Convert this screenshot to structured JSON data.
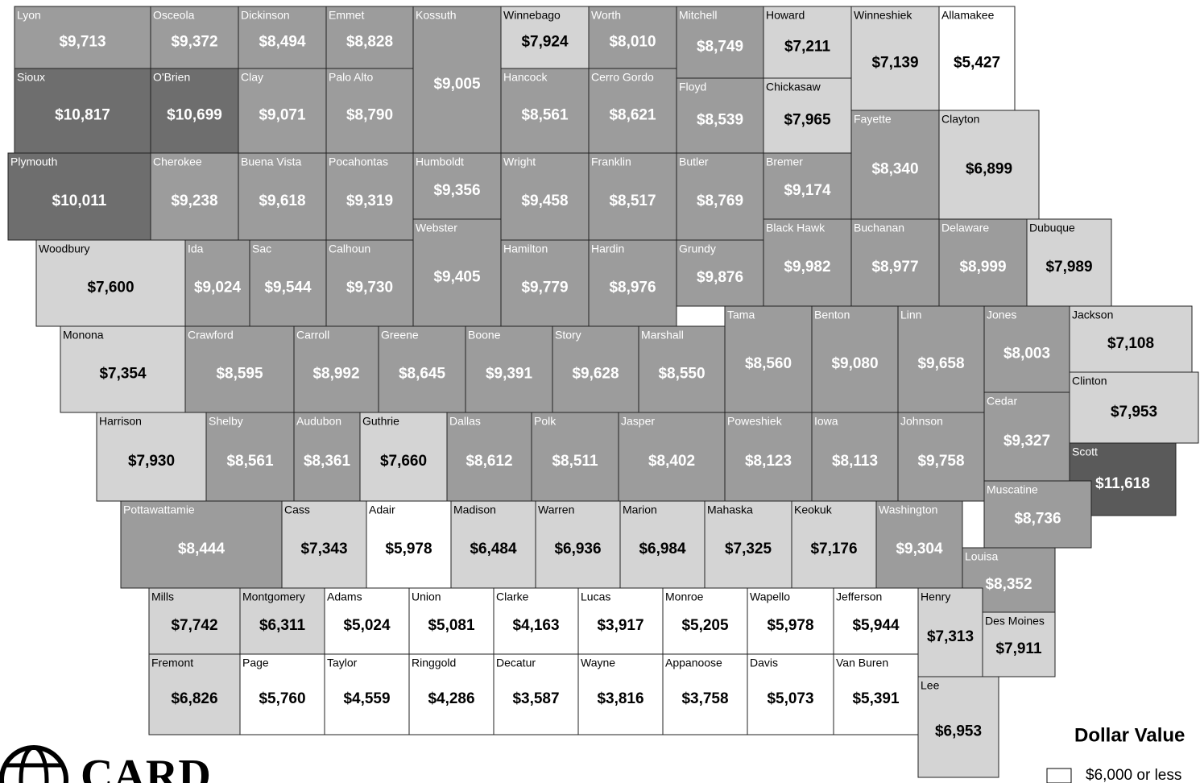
{
  "counties": [
    {
      "name": "Lyon",
      "value": "$9,713",
      "fill": "#9c9c9c"
    },
    {
      "name": "Osceola",
      "value": "$9,372",
      "fill": "#9c9c9c"
    },
    {
      "name": "Dickinson",
      "value": "$8,494",
      "fill": "#9c9c9c"
    },
    {
      "name": "Emmet",
      "value": "$8,828",
      "fill": "#9c9c9c"
    },
    {
      "name": "Kossuth",
      "value": "$9,005",
      "fill": "#9c9c9c"
    },
    {
      "name": "Winnebago",
      "value": "$7,924",
      "fill": "#d4d4d4"
    },
    {
      "name": "Worth",
      "value": "$8,010",
      "fill": "#9c9c9c"
    },
    {
      "name": "Mitchell",
      "value": "$8,749",
      "fill": "#9c9c9c"
    },
    {
      "name": "Howard",
      "value": "$7,211",
      "fill": "#d4d4d4"
    },
    {
      "name": "Winneshiek",
      "value": "$7,139",
      "fill": "#d4d4d4"
    },
    {
      "name": "Allamakee",
      "value": "$5,427",
      "fill": "#ffffff"
    },
    {
      "name": "Sioux",
      "value": "$10,817",
      "fill": "#6e6e6e"
    },
    {
      "name": "O'Brien",
      "value": "$10,699",
      "fill": "#6e6e6e"
    },
    {
      "name": "Clay",
      "value": "$9,071",
      "fill": "#9c9c9c"
    },
    {
      "name": "Palo Alto",
      "value": "$8,790",
      "fill": "#9c9c9c"
    },
    {
      "name": "Hancock",
      "value": "$8,561",
      "fill": "#9c9c9c"
    },
    {
      "name": "Cerro Gordo",
      "value": "$8,621",
      "fill": "#9c9c9c"
    },
    {
      "name": "Floyd",
      "value": "$8,539",
      "fill": "#9c9c9c"
    },
    {
      "name": "Chickasaw",
      "value": "$7,965",
      "fill": "#d4d4d4"
    },
    {
      "name": "Fayette",
      "value": "$8,340",
      "fill": "#9c9c9c"
    },
    {
      "name": "Clayton",
      "value": "$6,899",
      "fill": "#d4d4d4"
    },
    {
      "name": "Plymouth",
      "value": "$10,011",
      "fill": "#6e6e6e"
    },
    {
      "name": "Cherokee",
      "value": "$9,238",
      "fill": "#9c9c9c"
    },
    {
      "name": "Buena Vista",
      "value": "$9,618",
      "fill": "#9c9c9c"
    },
    {
      "name": "Pocahontas",
      "value": "$9,319",
      "fill": "#9c9c9c"
    },
    {
      "name": "Humboldt",
      "value": "$9,356",
      "fill": "#9c9c9c"
    },
    {
      "name": "Wright",
      "value": "$9,458",
      "fill": "#9c9c9c"
    },
    {
      "name": "Franklin",
      "value": "$8,517",
      "fill": "#9c9c9c"
    },
    {
      "name": "Butler",
      "value": "$8,769",
      "fill": "#9c9c9c"
    },
    {
      "name": "Bremer",
      "value": "$9,174",
      "fill": "#9c9c9c"
    },
    {
      "name": "Woodbury",
      "value": "$7,600",
      "fill": "#d4d4d4"
    },
    {
      "name": "Ida",
      "value": "$9,024",
      "fill": "#9c9c9c"
    },
    {
      "name": "Sac",
      "value": "$9,544",
      "fill": "#9c9c9c"
    },
    {
      "name": "Calhoun",
      "value": "$9,730",
      "fill": "#9c9c9c"
    },
    {
      "name": "Webster",
      "value": "$9,405",
      "fill": "#9c9c9c"
    },
    {
      "name": "Hamilton",
      "value": "$9,779",
      "fill": "#9c9c9c"
    },
    {
      "name": "Hardin",
      "value": "$8,976",
      "fill": "#9c9c9c"
    },
    {
      "name": "Grundy",
      "value": "$9,876",
      "fill": "#9c9c9c"
    },
    {
      "name": "Black Hawk",
      "value": "$9,982",
      "fill": "#9c9c9c"
    },
    {
      "name": "Buchanan",
      "value": "$8,977",
      "fill": "#9c9c9c"
    },
    {
      "name": "Delaware",
      "value": "$8,999",
      "fill": "#9c9c9c"
    },
    {
      "name": "Dubuque",
      "value": "$7,989",
      "fill": "#d4d4d4"
    },
    {
      "name": "Monona",
      "value": "$7,354",
      "fill": "#d4d4d4"
    },
    {
      "name": "Crawford",
      "value": "$8,595",
      "fill": "#9c9c9c"
    },
    {
      "name": "Carroll",
      "value": "$8,992",
      "fill": "#9c9c9c"
    },
    {
      "name": "Greene",
      "value": "$8,645",
      "fill": "#9c9c9c"
    },
    {
      "name": "Boone",
      "value": "$9,391",
      "fill": "#9c9c9c"
    },
    {
      "name": "Story",
      "value": "$9,628",
      "fill": "#9c9c9c"
    },
    {
      "name": "Marshall",
      "value": "$8,550",
      "fill": "#9c9c9c"
    },
    {
      "name": "Tama",
      "value": "$8,560",
      "fill": "#9c9c9c"
    },
    {
      "name": "Benton",
      "value": "$9,080",
      "fill": "#9c9c9c"
    },
    {
      "name": "Linn",
      "value": "$9,658",
      "fill": "#9c9c9c"
    },
    {
      "name": "Jones",
      "value": "$8,003",
      "fill": "#9c9c9c"
    },
    {
      "name": "Jackson",
      "value": "$7,108",
      "fill": "#d4d4d4"
    },
    {
      "name": "Clinton",
      "value": "$7,953",
      "fill": "#d4d4d4"
    },
    {
      "name": "Harrison",
      "value": "$7,930",
      "fill": "#d4d4d4"
    },
    {
      "name": "Shelby",
      "value": "$8,561",
      "fill": "#9c9c9c"
    },
    {
      "name": "Audubon",
      "value": "$8,361",
      "fill": "#9c9c9c"
    },
    {
      "name": "Guthrie",
      "value": "$7,660",
      "fill": "#d4d4d4"
    },
    {
      "name": "Dallas",
      "value": "$8,612",
      "fill": "#9c9c9c"
    },
    {
      "name": "Polk",
      "value": "$8,511",
      "fill": "#9c9c9c"
    },
    {
      "name": "Jasper",
      "value": "$8,402",
      "fill": "#9c9c9c"
    },
    {
      "name": "Poweshiek",
      "value": "$8,123",
      "fill": "#9c9c9c"
    },
    {
      "name": "Iowa",
      "value": "$8,113",
      "fill": "#9c9c9c"
    },
    {
      "name": "Johnson",
      "value": "$9,758",
      "fill": "#9c9c9c"
    },
    {
      "name": "Cedar",
      "value": "$9,327",
      "fill": "#9c9c9c"
    },
    {
      "name": "Scott",
      "value": "$11,618",
      "fill": "#5a5a5a"
    },
    {
      "name": "Muscatine",
      "value": "$8,736",
      "fill": "#9c9c9c"
    },
    {
      "name": "Pottawattamie",
      "value": "$8,444",
      "fill": "#9c9c9c"
    },
    {
      "name": "Cass",
      "value": "$7,343",
      "fill": "#d4d4d4"
    },
    {
      "name": "Adair",
      "value": "$5,978",
      "fill": "#ffffff"
    },
    {
      "name": "Madison",
      "value": "$6,484",
      "fill": "#d4d4d4"
    },
    {
      "name": "Warren",
      "value": "$6,936",
      "fill": "#d4d4d4"
    },
    {
      "name": "Marion",
      "value": "$6,984",
      "fill": "#d4d4d4"
    },
    {
      "name": "Mahaska",
      "value": "$7,325",
      "fill": "#d4d4d4"
    },
    {
      "name": "Keokuk",
      "value": "$7,176",
      "fill": "#d4d4d4"
    },
    {
      "name": "Washington",
      "value": "$9,304",
      "fill": "#9c9c9c"
    },
    {
      "name": "Louisa",
      "value": "$8,352",
      "fill": "#9c9c9c"
    },
    {
      "name": "Mills",
      "value": "$7,742",
      "fill": "#d4d4d4"
    },
    {
      "name": "Montgomery",
      "value": "$6,311",
      "fill": "#d4d4d4"
    },
    {
      "name": "Adams",
      "value": "$5,024",
      "fill": "#ffffff"
    },
    {
      "name": "Union",
      "value": "$5,081",
      "fill": "#ffffff"
    },
    {
      "name": "Clarke",
      "value": "$4,163",
      "fill": "#ffffff"
    },
    {
      "name": "Lucas",
      "value": "$3,917",
      "fill": "#ffffff"
    },
    {
      "name": "Monroe",
      "value": "$5,205",
      "fill": "#ffffff"
    },
    {
      "name": "Wapello",
      "value": "$5,978",
      "fill": "#ffffff"
    },
    {
      "name": "Jefferson",
      "value": "$5,944",
      "fill": "#ffffff"
    },
    {
      "name": "Henry",
      "value": "$7,313",
      "fill": "#d4d4d4"
    },
    {
      "name": "Des Moines",
      "value": "$7,911",
      "fill": "#d4d4d4"
    },
    {
      "name": "Fremont",
      "value": "$6,826",
      "fill": "#d4d4d4"
    },
    {
      "name": "Page",
      "value": "$5,760",
      "fill": "#ffffff"
    },
    {
      "name": "Taylor",
      "value": "$4,559",
      "fill": "#ffffff"
    },
    {
      "name": "Ringgold",
      "value": "$4,286",
      "fill": "#ffffff"
    },
    {
      "name": "Decatur",
      "value": "$3,587",
      "fill": "#ffffff"
    },
    {
      "name": "Wayne",
      "value": "$3,816",
      "fill": "#ffffff"
    },
    {
      "name": "Appanoose",
      "value": "$3,758",
      "fill": "#ffffff"
    },
    {
      "name": "Davis",
      "value": "$5,073",
      "fill": "#ffffff"
    },
    {
      "name": "Van Buren",
      "value": "$5,391",
      "fill": "#ffffff"
    },
    {
      "name": "Lee",
      "value": "$6,953",
      "fill": "#d4d4d4"
    }
  ],
  "legend": {
    "title": "Dollar Value",
    "items": [
      {
        "label": "$6,000 or less",
        "fill": "#ffffff"
      }
    ]
  },
  "logo": "CARD"
}
